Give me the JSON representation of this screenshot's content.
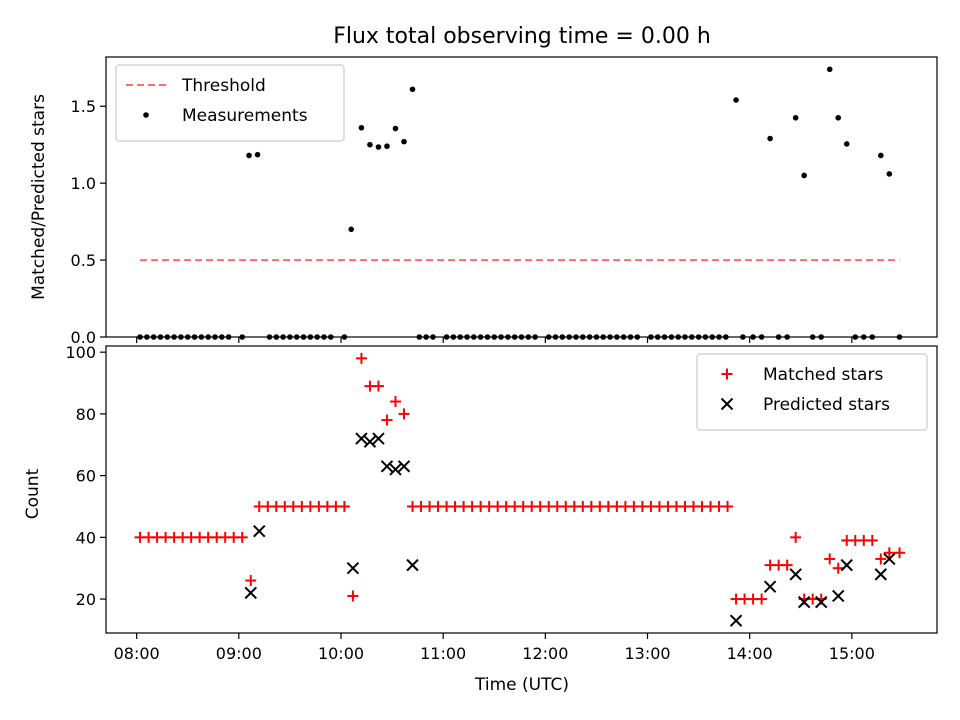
{
  "figure": {
    "title": "Flux total observing time = 0.00 h"
  },
  "chart_data": [
    {
      "type": "scatter",
      "panel": "top",
      "ylabel": "Matched/Predicted stars",
      "xlabel": "",
      "xlim": [
        "07:42",
        "15:50"
      ],
      "ylim": [
        0,
        1.82
      ],
      "yticks": [
        "0.0",
        "0.5",
        "1.0",
        "1.5"
      ],
      "ytick_values": [
        0,
        0.5,
        1.0,
        1.5
      ],
      "xticks": [
        "08:00",
        "09:00",
        "10:00",
        "11:00",
        "12:00",
        "13:00",
        "14:00",
        "15:00"
      ],
      "grid": false,
      "legend_position": "top-left",
      "threshold": {
        "name": "Threshold",
        "value": 0.5,
        "x": [
          "08:02",
          "15:28"
        ],
        "color": "#ff6b6b",
        "style": "dashed"
      },
      "series": [
        {
          "name": "Measurements",
          "color": "#000000",
          "marker": "dot",
          "points": [
            [
              "08:02",
              0
            ],
            [
              "08:06",
              0
            ],
            [
              "08:10",
              0
            ],
            [
              "08:14",
              0
            ],
            [
              "08:18",
              0
            ],
            [
              "08:22",
              0
            ],
            [
              "08:26",
              0
            ],
            [
              "08:30",
              0
            ],
            [
              "08:34",
              0
            ],
            [
              "08:38",
              0
            ],
            [
              "08:42",
              0
            ],
            [
              "08:46",
              0
            ],
            [
              "08:50",
              0
            ],
            [
              "08:54",
              0
            ],
            [
              "09:02",
              0
            ],
            [
              "09:06",
              1.18
            ],
            [
              "09:11",
              1.185
            ],
            [
              "09:18",
              0
            ],
            [
              "09:22",
              0
            ],
            [
              "09:26",
              0
            ],
            [
              "09:30",
              0
            ],
            [
              "09:34",
              0
            ],
            [
              "09:38",
              0
            ],
            [
              "09:42",
              0
            ],
            [
              "09:46",
              0
            ],
            [
              "09:50",
              0
            ],
            [
              "09:54",
              0
            ],
            [
              "10:02",
              0
            ],
            [
              "10:06",
              0.7
            ],
            [
              "10:12",
              1.36
            ],
            [
              "10:17",
              1.25
            ],
            [
              "10:22",
              1.235
            ],
            [
              "10:27",
              1.24
            ],
            [
              "10:32",
              1.355
            ],
            [
              "10:37",
              1.27
            ],
            [
              "10:42",
              1.61
            ],
            [
              "10:46",
              0
            ],
            [
              "10:50",
              0
            ],
            [
              "10:54",
              0
            ],
            [
              "11:02",
              0
            ],
            [
              "11:06",
              0
            ],
            [
              "11:10",
              0
            ],
            [
              "11:14",
              0
            ],
            [
              "11:18",
              0
            ],
            [
              "11:22",
              0
            ],
            [
              "11:26",
              0
            ],
            [
              "11:30",
              0
            ],
            [
              "11:34",
              0
            ],
            [
              "11:38",
              0
            ],
            [
              "11:42",
              0
            ],
            [
              "11:46",
              0
            ],
            [
              "11:50",
              0
            ],
            [
              "11:54",
              0
            ],
            [
              "12:02",
              0
            ],
            [
              "12:06",
              0
            ],
            [
              "12:10",
              0
            ],
            [
              "12:14",
              0
            ],
            [
              "12:18",
              0
            ],
            [
              "12:22",
              0
            ],
            [
              "12:26",
              0
            ],
            [
              "12:30",
              0
            ],
            [
              "12:34",
              0
            ],
            [
              "12:38",
              0
            ],
            [
              "12:42",
              0
            ],
            [
              "12:46",
              0
            ],
            [
              "12:50",
              0
            ],
            [
              "12:54",
              0
            ],
            [
              "13:02",
              0
            ],
            [
              "13:06",
              0
            ],
            [
              "13:10",
              0
            ],
            [
              "13:14",
              0
            ],
            [
              "13:18",
              0
            ],
            [
              "13:22",
              0
            ],
            [
              "13:26",
              0
            ],
            [
              "13:30",
              0
            ],
            [
              "13:34",
              0
            ],
            [
              "13:38",
              0
            ],
            [
              "13:42",
              0
            ],
            [
              "13:46",
              0
            ],
            [
              "13:52",
              1.54
            ],
            [
              "13:56",
              0
            ],
            [
              "14:02",
              0
            ],
            [
              "14:07",
              0
            ],
            [
              "14:12",
              1.29
            ],
            [
              "14:17",
              0
            ],
            [
              "14:22",
              0
            ],
            [
              "14:27",
              1.425
            ],
            [
              "14:32",
              1.05
            ],
            [
              "14:37",
              0
            ],
            [
              "14:42",
              0
            ],
            [
              "14:47",
              1.74
            ],
            [
              "14:52",
              1.425
            ],
            [
              "14:57",
              1.255
            ],
            [
              "15:02",
              0
            ],
            [
              "15:07",
              0
            ],
            [
              "15:12",
              0
            ],
            [
              "15:17",
              1.18
            ],
            [
              "15:22",
              1.06
            ],
            [
              "15:28",
              0
            ]
          ]
        }
      ]
    },
    {
      "type": "scatter",
      "panel": "bottom",
      "ylabel": "Count",
      "xlabel": "Time (UTC)",
      "xlim": [
        "07:42",
        "15:50"
      ],
      "ylim": [
        9,
        102
      ],
      "yticks": [
        "20",
        "40",
        "60",
        "80",
        "100"
      ],
      "ytick_values": [
        20,
        40,
        60,
        80,
        100
      ],
      "xticks": [
        "08:00",
        "09:00",
        "10:00",
        "11:00",
        "12:00",
        "13:00",
        "14:00",
        "15:00"
      ],
      "grid": false,
      "legend_position": "top-right",
      "series": [
        {
          "name": "Matched stars",
          "color": "#ff0000",
          "marker": "plus",
          "points": [
            [
              "08:02",
              40
            ],
            [
              "08:07",
              40
            ],
            [
              "08:12",
              40
            ],
            [
              "08:17",
              40
            ],
            [
              "08:22",
              40
            ],
            [
              "08:27",
              40
            ],
            [
              "08:32",
              40
            ],
            [
              "08:37",
              40
            ],
            [
              "08:42",
              40
            ],
            [
              "08:47",
              40
            ],
            [
              "08:52",
              40
            ],
            [
              "08:57",
              40
            ],
            [
              "09:02",
              40
            ],
            [
              "09:07",
              26
            ],
            [
              "09:12",
              50
            ],
            [
              "09:17",
              50
            ],
            [
              "09:22",
              50
            ],
            [
              "09:27",
              50
            ],
            [
              "09:32",
              50
            ],
            [
              "09:37",
              50
            ],
            [
              "09:42",
              50
            ],
            [
              "09:47",
              50
            ],
            [
              "09:52",
              50
            ],
            [
              "09:57",
              50
            ],
            [
              "10:02",
              50
            ],
            [
              "10:07",
              21
            ],
            [
              "10:12",
              98
            ],
            [
              "10:17",
              89
            ],
            [
              "10:22",
              89
            ],
            [
              "10:27",
              78
            ],
            [
              "10:32",
              84
            ],
            [
              "10:37",
              80
            ],
            [
              "10:42",
              50
            ],
            [
              "10:47",
              50
            ],
            [
              "10:52",
              50
            ],
            [
              "10:57",
              50
            ],
            [
              "11:02",
              50
            ],
            [
              "11:07",
              50
            ],
            [
              "11:12",
              50
            ],
            [
              "11:17",
              50
            ],
            [
              "11:22",
              50
            ],
            [
              "11:27",
              50
            ],
            [
              "11:32",
              50
            ],
            [
              "11:37",
              50
            ],
            [
              "11:42",
              50
            ],
            [
              "11:47",
              50
            ],
            [
              "11:52",
              50
            ],
            [
              "11:57",
              50
            ],
            [
              "12:02",
              50
            ],
            [
              "12:07",
              50
            ],
            [
              "12:12",
              50
            ],
            [
              "12:17",
              50
            ],
            [
              "12:22",
              50
            ],
            [
              "12:27",
              50
            ],
            [
              "12:32",
              50
            ],
            [
              "12:37",
              50
            ],
            [
              "12:42",
              50
            ],
            [
              "12:47",
              50
            ],
            [
              "12:52",
              50
            ],
            [
              "12:57",
              50
            ],
            [
              "13:02",
              50
            ],
            [
              "13:07",
              50
            ],
            [
              "13:12",
              50
            ],
            [
              "13:17",
              50
            ],
            [
              "13:22",
              50
            ],
            [
              "13:27",
              50
            ],
            [
              "13:32",
              50
            ],
            [
              "13:37",
              50
            ],
            [
              "13:42",
              50
            ],
            [
              "13:47",
              50
            ],
            [
              "13:52",
              20
            ],
            [
              "13:57",
              20
            ],
            [
              "14:02",
              20
            ],
            [
              "14:07",
              20
            ],
            [
              "14:12",
              31
            ],
            [
              "14:17",
              31
            ],
            [
              "14:22",
              31
            ],
            [
              "14:27",
              40
            ],
            [
              "14:32",
              20
            ],
            [
              "14:37",
              20
            ],
            [
              "14:42",
              20
            ],
            [
              "14:47",
              33
            ],
            [
              "14:52",
              30
            ],
            [
              "14:57",
              39
            ],
            [
              "15:02",
              39
            ],
            [
              "15:07",
              39
            ],
            [
              "15:12",
              39
            ],
            [
              "15:17",
              33
            ],
            [
              "15:22",
              35
            ],
            [
              "15:28",
              35
            ]
          ]
        },
        {
          "name": "Predicted stars",
          "color": "#000000",
          "marker": "x",
          "points": [
            [
              "09:07",
              22
            ],
            [
              "09:12",
              42
            ],
            [
              "10:07",
              30
            ],
            [
              "10:12",
              72
            ],
            [
              "10:17",
              71
            ],
            [
              "10:22",
              72
            ],
            [
              "10:27",
              63
            ],
            [
              "10:32",
              62
            ],
            [
              "10:37",
              63
            ],
            [
              "10:42",
              31
            ],
            [
              "13:52",
              13
            ],
            [
              "14:12",
              24
            ],
            [
              "14:27",
              28
            ],
            [
              "14:32",
              19
            ],
            [
              "14:42",
              19
            ],
            [
              "14:52",
              21
            ],
            [
              "14:57",
              31
            ],
            [
              "15:17",
              28
            ],
            [
              "15:22",
              33
            ]
          ]
        }
      ]
    }
  ]
}
